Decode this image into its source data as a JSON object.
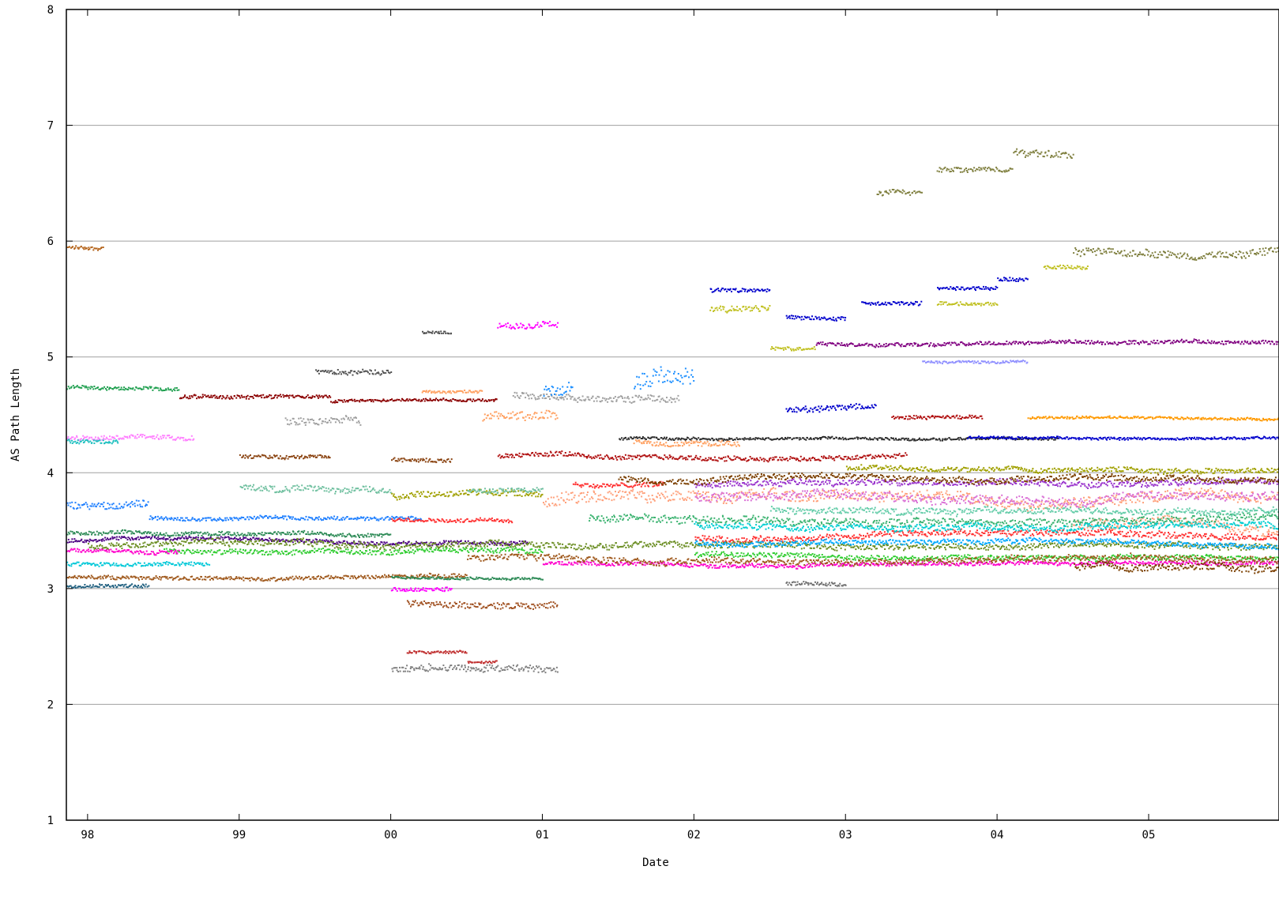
{
  "chart_data": {
    "type": "scatter",
    "title": "",
    "xlabel": "Date",
    "ylabel": "AS Path Length",
    "ylim": [
      1,
      8
    ],
    "yticks": [
      "1",
      "2",
      "3",
      "4",
      "5",
      "6",
      "7",
      "8"
    ],
    "xlim": [
      1997.86,
      2005.86
    ],
    "xticks": [
      {
        "value": 1998.0,
        "label": "98"
      },
      {
        "value": 1999.0,
        "label": "99"
      },
      {
        "value": 2000.0,
        "label": "00"
      },
      {
        "value": 2001.0,
        "label": "01"
      },
      {
        "value": 2002.0,
        "label": "02"
      },
      {
        "value": 2003.0,
        "label": "03"
      },
      {
        "value": 2004.0,
        "label": "04"
      },
      {
        "value": 2005.0,
        "label": "05"
      }
    ],
    "grid": "horizontal",
    "legend": "none",
    "series": [
      {
        "color": "#b5651d",
        "segments": [
          [
            1997.86,
            1998.1,
            5.95,
            0.03
          ]
        ]
      },
      {
        "color": "#20a050",
        "segments": [
          [
            1997.86,
            1998.6,
            4.74,
            0.03
          ]
        ]
      },
      {
        "color": "#ff80ff",
        "segments": [
          [
            1997.86,
            1998.7,
            4.3,
            0.04
          ]
        ]
      },
      {
        "color": "#20c0c0",
        "segments": [
          [
            1997.86,
            1998.2,
            4.28,
            0.03
          ]
        ]
      },
      {
        "color": "#2080ff",
        "segments": [
          [
            1997.86,
            1998.4,
            3.72,
            0.06
          ],
          [
            1998.4,
            2000.2,
            3.62,
            0.03
          ]
        ]
      },
      {
        "color": "#8b0000",
        "segments": [
          [
            1998.6,
            1999.6,
            4.66,
            0.03
          ],
          [
            1999.6,
            2000.7,
            4.62,
            0.02
          ]
        ]
      },
      {
        "color": "#505050",
        "segments": [
          [
            1999.5,
            2000.0,
            4.88,
            0.04
          ],
          [
            2000.2,
            2000.4,
            5.22,
            0.02
          ]
        ]
      },
      {
        "color": "#8b4513",
        "segments": [
          [
            1999.0,
            1999.6,
            4.15,
            0.03
          ],
          [
            2000.0,
            2000.4,
            4.12,
            0.03
          ]
        ]
      },
      {
        "color": "#a0a0a0",
        "segments": [
          [
            1999.3,
            1999.8,
            4.45,
            0.06
          ],
          [
            2000.8,
            2001.9,
            4.68,
            0.05
          ]
        ]
      },
      {
        "color": "#808080",
        "segments": [
          [
            2000.0,
            2001.1,
            2.3,
            0.06
          ]
        ]
      },
      {
        "color": "#c03030",
        "segments": [
          [
            2000.1,
            2000.5,
            2.46,
            0.02
          ],
          [
            2000.5,
            2000.7,
            2.37,
            0.02
          ]
        ]
      },
      {
        "color": "#a05020",
        "segments": [
          [
            2000.1,
            2001.1,
            2.88,
            0.05
          ]
        ]
      },
      {
        "color": "#ff00ff",
        "segments": [
          [
            2000.0,
            2000.4,
            3.0,
            0.03
          ],
          [
            2000.7,
            2001.1,
            5.28,
            0.05
          ]
        ]
      },
      {
        "color": "#ffa060",
        "segments": [
          [
            2000.2,
            2000.6,
            4.71,
            0.02
          ],
          [
            2000.6,
            2001.1,
            4.48,
            0.07
          ],
          [
            2001.6,
            2002.3,
            4.27,
            0.04
          ]
        ]
      },
      {
        "color": "#b01010",
        "segments": [
          [
            2000.7,
            2003.4,
            4.15,
            0.04
          ],
          [
            2003.3,
            2003.9,
            4.48,
            0.03
          ]
        ]
      },
      {
        "color": "#2c2c2c",
        "segments": [
          [
            2001.5,
            2004.4,
            4.3,
            0.02
          ]
        ]
      },
      {
        "color": "#0000cc",
        "segments": [
          [
            2002.1,
            2002.5,
            5.58,
            0.03
          ],
          [
            2002.6,
            2003.0,
            5.35,
            0.03
          ],
          [
            2003.1,
            2003.5,
            5.47,
            0.03
          ],
          [
            2003.6,
            2004.0,
            5.6,
            0.03
          ],
          [
            2004.0,
            2004.2,
            5.68,
            0.03
          ],
          [
            2002.6,
            2003.2,
            4.55,
            0.05
          ],
          [
            2003.8,
            2005.86,
            4.31,
            0.02
          ]
        ]
      },
      {
        "color": "#c0c020",
        "segments": [
          [
            2002.1,
            2002.5,
            5.42,
            0.05
          ],
          [
            2002.5,
            2002.8,
            5.08,
            0.03
          ],
          [
            2003.6,
            2004.0,
            5.47,
            0.03
          ],
          [
            2004.3,
            2004.6,
            5.78,
            0.03
          ]
        ]
      },
      {
        "color": "#800080",
        "segments": [
          [
            2002.8,
            2005.86,
            5.12,
            0.03
          ]
        ]
      },
      {
        "color": "#9090ff",
        "segments": [
          [
            2003.5,
            2004.2,
            4.96,
            0.02
          ]
        ]
      },
      {
        "color": "#808040",
        "segments": [
          [
            2003.2,
            2003.5,
            6.42,
            0.04
          ],
          [
            2003.6,
            2004.1,
            6.62,
            0.04
          ],
          [
            2004.1,
            2004.5,
            6.78,
            0.06
          ],
          [
            2004.5,
            2005.86,
            5.92,
            0.06
          ]
        ]
      },
      {
        "color": "#ff9900",
        "segments": [
          [
            2004.2,
            2005.86,
            4.48,
            0.02
          ]
        ]
      },
      {
        "color": "#a0a000",
        "segments": [
          [
            2000.0,
            2001.0,
            3.8,
            0.05
          ],
          [
            2003.0,
            2005.86,
            4.05,
            0.04
          ]
        ]
      },
      {
        "color": "#70c0a0",
        "segments": [
          [
            1999.0,
            2000.0,
            3.88,
            0.05
          ],
          [
            2000.5,
            2001.0,
            3.85,
            0.04
          ]
        ]
      },
      {
        "color": "#ff3030",
        "segments": [
          [
            2000.0,
            2000.8,
            3.6,
            0.03
          ],
          [
            2001.2,
            2001.8,
            3.9,
            0.04
          ],
          [
            2002.0,
            2005.86,
            3.45,
            0.05
          ]
        ]
      },
      {
        "color": "#ffa07a",
        "segments": [
          [
            2001.0,
            2005.86,
            3.75,
            0.09
          ],
          [
            2004.5,
            2005.86,
            3.55,
            0.08
          ]
        ]
      },
      {
        "color": "#3cb371",
        "segments": [
          [
            2001.3,
            2005.86,
            3.62,
            0.06
          ]
        ]
      },
      {
        "color": "#da70d6",
        "segments": [
          [
            2002.0,
            2005.86,
            3.8,
            0.07
          ]
        ]
      },
      {
        "color": "#00ced1",
        "segments": [
          [
            2002.0,
            2005.86,
            3.56,
            0.05
          ]
        ]
      },
      {
        "color": "#4b0082",
        "segments": [
          [
            1997.86,
            2000.9,
            3.42,
            0.03
          ]
        ]
      },
      {
        "color": "#32cd32",
        "segments": [
          [
            1998.5,
            2001.0,
            3.33,
            0.04
          ],
          [
            2002.0,
            2005.86,
            3.3,
            0.04
          ]
        ]
      },
      {
        "color": "#ff00cc",
        "segments": [
          [
            1997.86,
            1998.6,
            3.34,
            0.03
          ],
          [
            2001.0,
            2005.86,
            3.22,
            0.03
          ]
        ]
      },
      {
        "color": "#00c8d8",
        "segments": [
          [
            1997.86,
            1998.8,
            3.22,
            0.03
          ]
        ]
      },
      {
        "color": "#a05a1e",
        "segments": [
          [
            1997.86,
            2000.5,
            3.1,
            0.03
          ],
          [
            2000.5,
            2005.86,
            3.27,
            0.05
          ]
        ]
      },
      {
        "color": "#1f5f7f",
        "segments": [
          [
            1997.86,
            1998.4,
            3.03,
            0.03
          ]
        ]
      },
      {
        "color": "#2e8b57",
        "segments": [
          [
            1997.86,
            2000.0,
            3.49,
            0.03
          ],
          [
            2000.0,
            2001.0,
            3.1,
            0.02
          ]
        ]
      },
      {
        "color": "#6b8e23",
        "segments": [
          [
            1998.0,
            2005.86,
            3.37,
            0.05
          ]
        ]
      },
      {
        "color": "#9932cc",
        "segments": [
          [
            2002.0,
            2005.86,
            3.9,
            0.05
          ]
        ]
      },
      {
        "color": "#00aaff",
        "segments": [
          [
            2002.0,
            2005.86,
            3.4,
            0.04
          ]
        ]
      },
      {
        "color": "#7b3f00",
        "segments": [
          [
            2001.5,
            2005.86,
            3.95,
            0.05
          ],
          [
            2004.5,
            2005.86,
            3.2,
            0.06
          ]
        ]
      },
      {
        "color": "#66cdaa",
        "segments": [
          [
            2002.5,
            2005.86,
            3.7,
            0.05
          ]
        ]
      },
      {
        "color": "#707070",
        "segments": [
          [
            2002.6,
            2003.0,
            3.05,
            0.03
          ]
        ]
      },
      {
        "color": "#1e90ff",
        "segments": [
          [
            2001.6,
            2002.0,
            4.8,
            0.15
          ],
          [
            2001.0,
            2001.2,
            4.72,
            0.12
          ]
        ]
      }
    ]
  }
}
